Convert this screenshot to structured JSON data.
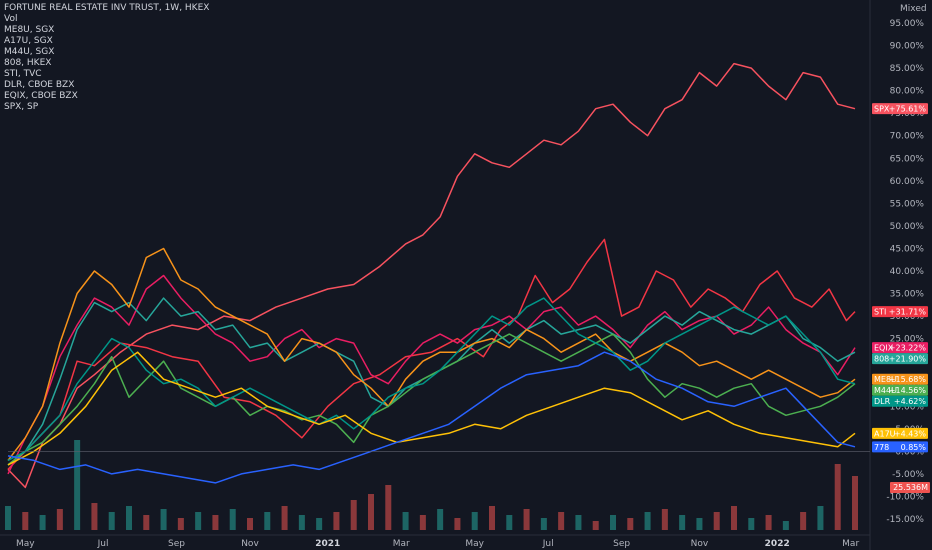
{
  "chart_data": {
    "type": "line",
    "title": "FORTUNE REAL ESTATE INV TRUST, 1W, HKEX",
    "scale_mode": "Mixed",
    "legend": [
      "Vol",
      "ME8U, SGX",
      "A17U, SGX",
      "M44U, SGX",
      "808, HKEX",
      "STI, TVC",
      "DLR, CBOE BZX",
      "EQIX, CBOE BZX",
      "SPX, SP"
    ],
    "x_ticks": [
      "May",
      "Jul",
      "Sep",
      "Nov",
      "2021",
      "Mar",
      "May",
      "Jul",
      "Sep",
      "Nov",
      "2022",
      "Mar"
    ],
    "y_ticks": [
      "95.00%",
      "90.00%",
      "85.00%",
      "80.00%",
      "75.00%",
      "70.00%",
      "65.00%",
      "60.00%",
      "55.00%",
      "50.00%",
      "45.00%",
      "40.00%",
      "35.00%",
      "30.00%",
      "25.00%",
      "20.00%",
      "15.00%",
      "10.00%",
      "5.00%",
      "0.00%",
      "-5.00%",
      "-10.00%",
      "-15.00%"
    ],
    "ylim": [
      -17,
      97
    ],
    "x_range_weeks": [
      0,
      98
    ],
    "grid": false,
    "legend_position": "top-left",
    "series": [
      {
        "name": "SPX",
        "color": "#f7525f",
        "label": "SPX",
        "last": "+75.61%",
        "x": [
          0,
          2,
          4,
          6,
          8,
          10,
          13,
          16,
          19,
          22,
          25,
          28,
          31,
          34,
          37,
          40,
          43,
          46,
          48,
          50,
          52,
          54,
          56,
          58,
          60,
          62,
          64,
          66,
          68,
          70,
          72,
          74,
          76,
          78,
          80,
          82,
          84,
          86,
          88,
          90,
          92,
          94,
          96,
          98
        ],
        "values": [
          -4,
          -8,
          2,
          6,
          14,
          17,
          22,
          26,
          28,
          27,
          30,
          29,
          32,
          34,
          36,
          37,
          41,
          46,
          48,
          52,
          61,
          66,
          64,
          63,
          66,
          69,
          68,
          71,
          76,
          77,
          73,
          70,
          76,
          78,
          84,
          81,
          86,
          85,
          81,
          78,
          84,
          83,
          77,
          76
        ]
      },
      {
        "name": "STI",
        "color": "#f23645",
        "label": "STI",
        "last": "+31.71%",
        "x": [
          0,
          3,
          6,
          8,
          10,
          13,
          16,
          19,
          22,
          25,
          28,
          31,
          34,
          37,
          40,
          43,
          46,
          49,
          52,
          55,
          57,
          59,
          61,
          63,
          65,
          67,
          69,
          71,
          73,
          75,
          77,
          79,
          81,
          83,
          85,
          87,
          89,
          91,
          93,
          95,
          97,
          98
        ],
        "values": [
          -4,
          2,
          8,
          20,
          19,
          24,
          23,
          21,
          20,
          12,
          11,
          8,
          3,
          10,
          15,
          17,
          21,
          22,
          25,
          21,
          27,
          30,
          39,
          33,
          36,
          42,
          47,
          30,
          32,
          40,
          38,
          32,
          36,
          34,
          31,
          37,
          40,
          34,
          32,
          36,
          29,
          31
        ]
      },
      {
        "name": "EQIX",
        "color": "#e91e63",
        "label": "EQIX",
        "last": "+23.22%",
        "x": [
          0,
          2,
          4,
          6,
          8,
          10,
          12,
          14,
          16,
          18,
          20,
          22,
          24,
          26,
          28,
          30,
          32,
          34,
          36,
          38,
          40,
          42,
          44,
          46,
          48,
          50,
          52,
          54,
          56,
          58,
          60,
          62,
          64,
          66,
          68,
          70,
          72,
          74,
          76,
          78,
          80,
          82,
          84,
          86,
          88,
          90,
          92,
          94,
          96,
          98
        ],
        "values": [
          -5,
          3,
          10,
          21,
          28,
          34,
          32,
          28,
          36,
          39,
          34,
          30,
          26,
          24,
          20,
          21,
          25,
          27,
          23,
          25,
          24,
          17,
          15,
          20,
          24,
          26,
          24,
          27,
          28,
          30,
          27,
          31,
          32,
          28,
          30,
          27,
          23,
          28,
          31,
          27,
          29,
          30,
          26,
          28,
          32,
          27,
          24,
          22,
          17,
          23
        ]
      },
      {
        "name": "808",
        "color": "#26a69a",
        "label": "808",
        "last": "+21.90%",
        "x": [
          0,
          2,
          4,
          6,
          8,
          10,
          12,
          14,
          16,
          18,
          20,
          22,
          24,
          26,
          28,
          30,
          32,
          34,
          36,
          38,
          40,
          42,
          44,
          46,
          48,
          50,
          52,
          54,
          56,
          58,
          60,
          62,
          64,
          66,
          68,
          70,
          72,
          74,
          76,
          78,
          80,
          82,
          84,
          86,
          88,
          90,
          92,
          94,
          96,
          98
        ],
        "values": [
          -3,
          0,
          6,
          16,
          27,
          33,
          31,
          33,
          29,
          34,
          30,
          31,
          27,
          28,
          23,
          24,
          20,
          22,
          24,
          22,
          20,
          12,
          10,
          14,
          16,
          18,
          20,
          24,
          27,
          24,
          27,
          29,
          26,
          27,
          28,
          26,
          24,
          27,
          30,
          28,
          31,
          29,
          27,
          26,
          28,
          30,
          25,
          23,
          20,
          22
        ]
      },
      {
        "name": "ME8U",
        "color": "#f7931a",
        "label": "ME8U",
        "last": "+15.68%",
        "x": [
          0,
          2,
          4,
          6,
          8,
          10,
          12,
          14,
          16,
          18,
          20,
          22,
          24,
          26,
          28,
          30,
          32,
          34,
          36,
          38,
          40,
          42,
          44,
          46,
          48,
          50,
          52,
          54,
          56,
          58,
          60,
          62,
          64,
          66,
          68,
          70,
          72,
          74,
          76,
          78,
          80,
          82,
          84,
          86,
          88,
          90,
          92,
          94,
          96,
          98
        ],
        "values": [
          -2,
          3,
          10,
          24,
          35,
          40,
          37,
          32,
          43,
          45,
          38,
          36,
          32,
          30,
          28,
          26,
          20,
          25,
          24,
          22,
          17,
          14,
          10,
          16,
          20,
          22,
          22,
          24,
          25,
          23,
          27,
          25,
          22,
          24,
          26,
          22,
          20,
          22,
          24,
          22,
          19,
          20,
          18,
          16,
          18,
          16,
          14,
          12,
          13,
          16
        ]
      },
      {
        "name": "M44U",
        "color": "#4caf50",
        "label": "M44U",
        "last": "+14.56%",
        "x": [
          0,
          2,
          4,
          6,
          8,
          10,
          12,
          14,
          16,
          18,
          20,
          22,
          24,
          26,
          28,
          30,
          32,
          34,
          36,
          38,
          40,
          42,
          44,
          46,
          48,
          50,
          52,
          54,
          56,
          58,
          60,
          62,
          64,
          66,
          68,
          70,
          72,
          74,
          76,
          78,
          80,
          82,
          84,
          86,
          88,
          90,
          92,
          94,
          96,
          98
        ],
        "values": [
          -3,
          0,
          2,
          6,
          10,
          15,
          21,
          12,
          16,
          20,
          14,
          12,
          10,
          12,
          8,
          10,
          9,
          7,
          8,
          6,
          2,
          8,
          10,
          13,
          16,
          18,
          20,
          22,
          24,
          26,
          24,
          22,
          20,
          22,
          24,
          26,
          22,
          16,
          12,
          15,
          14,
          12,
          14,
          15,
          10,
          8,
          9,
          10,
          12,
          15
        ]
      },
      {
        "name": "DLR",
        "color": "#009688",
        "label": "DLR",
        "last": "+4.62%",
        "x": [
          0,
          2,
          4,
          6,
          8,
          10,
          12,
          14,
          16,
          18,
          20,
          22,
          24,
          26,
          28,
          30,
          32,
          34,
          36,
          38,
          40,
          42,
          44,
          46,
          48,
          50,
          52,
          54,
          56,
          58,
          60,
          62,
          64,
          66,
          68,
          70,
          72,
          74,
          76,
          78,
          80,
          82,
          84,
          86,
          88,
          90,
          92,
          94,
          96,
          98
        ],
        "values": [
          -2,
          0,
          4,
          8,
          15,
          20,
          25,
          23,
          18,
          15,
          16,
          14,
          10,
          12,
          14,
          12,
          10,
          8,
          6,
          8,
          5,
          8,
          12,
          14,
          15,
          18,
          22,
          26,
          30,
          28,
          32,
          34,
          30,
          26,
          24,
          22,
          18,
          20,
          24,
          26,
          28,
          30,
          32,
          30,
          28,
          30,
          26,
          22,
          16,
          15
        ]
      },
      {
        "name": "A17U",
        "color": "#ffc107",
        "label": "A17U",
        "last": "+4.43%",
        "x": [
          0,
          3,
          6,
          9,
          12,
          15,
          18,
          21,
          24,
          27,
          30,
          33,
          36,
          39,
          42,
          45,
          48,
          51,
          54,
          57,
          60,
          63,
          66,
          69,
          72,
          75,
          78,
          81,
          84,
          87,
          90,
          93,
          96,
          98
        ],
        "values": [
          -3,
          0,
          4,
          10,
          18,
          22,
          16,
          14,
          12,
          14,
          10,
          8,
          6,
          8,
          4,
          2,
          3,
          4,
          6,
          5,
          8,
          10,
          12,
          14,
          13,
          10,
          7,
          9,
          6,
          4,
          3,
          2,
          1,
          4
        ]
      },
      {
        "name": "778",
        "color": "#2962ff",
        "label": "778",
        "last": "0.85%",
        "x": [
          0,
          3,
          6,
          9,
          12,
          15,
          18,
          21,
          24,
          27,
          30,
          33,
          36,
          39,
          42,
          45,
          48,
          51,
          54,
          57,
          60,
          63,
          66,
          69,
          72,
          75,
          78,
          81,
          84,
          87,
          90,
          93,
          96,
          98
        ],
        "values": [
          -1,
          -2,
          -4,
          -3,
          -5,
          -4,
          -5,
          -6,
          -7,
          -5,
          -4,
          -3,
          -4,
          -2,
          0,
          2,
          4,
          6,
          10,
          14,
          17,
          18,
          19,
          22,
          20,
          16,
          14,
          11,
          10,
          12,
          14,
          8,
          2,
          1
        ]
      }
    ],
    "volume": {
      "label": "25.536M",
      "x": [
        0,
        2,
        4,
        6,
        8,
        10,
        12,
        14,
        16,
        18,
        20,
        22,
        24,
        26,
        28,
        30,
        32,
        34,
        36,
        38,
        40,
        42,
        44,
        46,
        48,
        50,
        52,
        54,
        56,
        58,
        60,
        62,
        64,
        66,
        68,
        70,
        72,
        74,
        76,
        78,
        80,
        82,
        84,
        86,
        88,
        90,
        92,
        94,
        96,
        98
      ],
      "values": [
        8,
        6,
        5,
        7,
        30,
        9,
        6,
        8,
        5,
        7,
        4,
        6,
        5,
        7,
        4,
        6,
        8,
        5,
        4,
        6,
        10,
        12,
        15,
        6,
        5,
        7,
        4,
        6,
        8,
        5,
        7,
        4,
        6,
        5,
        3,
        5,
        4,
        6,
        7,
        5,
        4,
        6,
        8,
        4,
        5,
        3,
        6,
        8,
        22,
        18
      ],
      "up": [
        true,
        false,
        true,
        false,
        true,
        false,
        true,
        true,
        false,
        true,
        false,
        true,
        false,
        true,
        false,
        true,
        false,
        true,
        true,
        false,
        false,
        false,
        false,
        true,
        false,
        true,
        false,
        true,
        false,
        true,
        false,
        true,
        false,
        true,
        false,
        true,
        false,
        true,
        false,
        true,
        true,
        false,
        false,
        true,
        false,
        true,
        false,
        true,
        false,
        false
      ]
    }
  }
}
